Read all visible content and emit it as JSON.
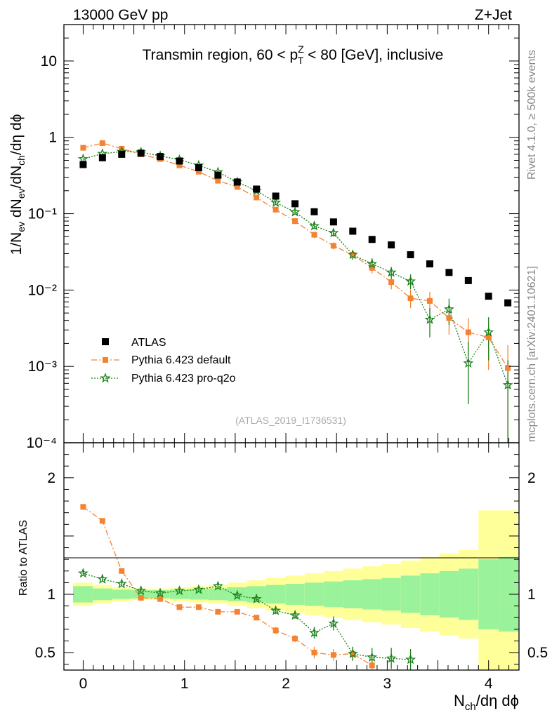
{
  "header": {
    "energy": "13000 GeV pp",
    "process": "Z+Jet",
    "rivet": "Rivet 4.1.0, ≥ 500k events",
    "mcplots": "mcplots.cern.ch [arXiv:2401.10621]"
  },
  "colors": {
    "atlas": "#000000",
    "default": "#f58231",
    "proq2o": "#1a7f1a",
    "band_inner": "#9af39a",
    "band_outer": "#ffff99"
  },
  "chart_data": [
    {
      "type": "scatter",
      "name": "main",
      "title": "Transmin region, 60 < p",
      "title_sup": "Z",
      "title_sub": "T",
      "title_end": " < 80 [GeV], inclusive",
      "analysis_id": "(ATLAS_2019_I1736531)",
      "ylabel": "1/N_ev dN_ev/dN_ch/dη dφ",
      "yscale": "log",
      "ylim": [
        0.0001,
        30
      ],
      "xlim": [
        -0.19,
        4.3
      ],
      "y_ticks": [
        {
          "v": 10,
          "label": "10"
        },
        {
          "v": 1,
          "label": "1"
        },
        {
          "v": 0.1,
          "label": "10⁻¹"
        },
        {
          "v": 0.01,
          "label": "10⁻²"
        },
        {
          "v": 0.001,
          "label": "10⁻³"
        },
        {
          "v": 0.0001,
          "label": "10⁻⁴"
        }
      ],
      "legend": {
        "position": "bottom-left",
        "entries": [
          "ATLAS",
          "Pythia 6.423 default",
          "Pythia 6.423 pro-q2o"
        ]
      },
      "series": [
        {
          "name": "ATLAS",
          "x": [
            0,
            0.19,
            0.38,
            0.57,
            0.76,
            0.95,
            1.14,
            1.33,
            1.52,
            1.71,
            1.9,
            2.09,
            2.28,
            2.47,
            2.66,
            2.85,
            3.04,
            3.23,
            3.42,
            3.61,
            3.8,
            4.0,
            4.19
          ],
          "y": [
            0.44,
            0.54,
            0.6,
            0.62,
            0.56,
            0.49,
            0.4,
            0.32,
            0.26,
            0.21,
            0.17,
            0.135,
            0.106,
            0.078,
            0.059,
            0.046,
            0.039,
            0.029,
            0.022,
            0.017,
            0.0133,
            0.0083,
            0.0068
          ]
        },
        {
          "name": "Pythia 6.423 default",
          "x": [
            0,
            0.19,
            0.38,
            0.57,
            0.76,
            0.95,
            1.14,
            1.33,
            1.52,
            1.71,
            1.9,
            2.09,
            2.28,
            2.47,
            2.66,
            2.85,
            3.04,
            3.23,
            3.42,
            3.61,
            3.8,
            4.0,
            4.19
          ],
          "y": [
            0.73,
            0.84,
            0.71,
            0.6,
            0.52,
            0.43,
            0.355,
            0.27,
            0.224,
            0.163,
            0.113,
            0.08,
            0.053,
            0.038,
            0.029,
            0.0195,
            0.0127,
            0.0078,
            0.0072,
            0.0043,
            0.0028,
            0.0024,
            0.00095
          ],
          "err_lo": [
            0.72,
            0.83,
            0.69,
            0.58,
            0.5,
            0.41,
            0.34,
            0.255,
            0.21,
            0.152,
            0.104,
            0.073,
            0.048,
            0.034,
            0.025,
            0.0165,
            0.0102,
            0.0058,
            0.0048,
            0.0026,
            0.0014,
            0.0009,
            0.0001
          ],
          "err_hi": [
            0.74,
            0.85,
            0.73,
            0.62,
            0.54,
            0.45,
            0.37,
            0.285,
            0.238,
            0.174,
            0.122,
            0.087,
            0.058,
            0.042,
            0.033,
            0.023,
            0.0155,
            0.0102,
            0.0094,
            0.0062,
            0.0043,
            0.0038,
            0.0019
          ]
        },
        {
          "name": "Pythia 6.423 pro-q2o",
          "x": [
            0,
            0.19,
            0.38,
            0.57,
            0.76,
            0.95,
            1.14,
            1.33,
            1.52,
            1.71,
            1.9,
            2.09,
            2.28,
            2.47,
            2.66,
            2.85,
            3.04,
            3.23,
            3.42,
            3.61,
            3.8,
            4.0,
            4.19
          ],
          "y": [
            0.52,
            0.61,
            0.65,
            0.64,
            0.57,
            0.51,
            0.43,
            0.35,
            0.26,
            0.2,
            0.14,
            0.105,
            0.069,
            0.056,
            0.029,
            0.022,
            0.017,
            0.013,
            0.0041,
            0.0056,
            0.0011,
            0.0028,
            0.00057
          ],
          "err_lo": [
            0.51,
            0.6,
            0.64,
            0.63,
            0.56,
            0.5,
            0.42,
            0.34,
            0.25,
            0.19,
            0.132,
            0.098,
            0.063,
            0.05,
            0.025,
            0.018,
            0.014,
            0.0103,
            0.0024,
            0.0035,
            0.00032,
            0.0012,
            0.0001
          ],
          "err_hi": [
            0.53,
            0.62,
            0.66,
            0.65,
            0.58,
            0.52,
            0.44,
            0.36,
            0.27,
            0.21,
            0.148,
            0.112,
            0.075,
            0.062,
            0.033,
            0.026,
            0.02,
            0.016,
            0.0058,
            0.0077,
            0.0021,
            0.0044,
            0.0012
          ]
        }
      ]
    },
    {
      "type": "scatter",
      "name": "ratio",
      "ylabel": "Ratio to ATLAS",
      "xlabel": "N_ch/dη dφ",
      "ylim": [
        0.35,
        2.3
      ],
      "xlim": [
        -0.19,
        4.3
      ],
      "y_ticks": [
        {
          "v": 2,
          "label": "2"
        },
        {
          "v": 1,
          "label": "1"
        },
        {
          "v": 0.5,
          "label": "0.5"
        }
      ],
      "x_ticks": [
        {
          "v": 0,
          "label": "0"
        },
        {
          "v": 1,
          "label": "1"
        },
        {
          "v": 2,
          "label": "2"
        },
        {
          "v": 3,
          "label": "3"
        },
        {
          "v": 4,
          "label": "4"
        }
      ],
      "band_edges": [
        -0.1,
        0.095,
        0.285,
        0.475,
        0.665,
        0.855,
        1.045,
        1.235,
        1.425,
        1.615,
        1.805,
        1.995,
        2.185,
        2.375,
        2.565,
        2.755,
        2.945,
        3.135,
        3.325,
        3.515,
        3.705,
        3.9,
        4.1,
        4.3
      ],
      "band_inner_lo": [
        0.93,
        0.95,
        0.96,
        0.965,
        0.965,
        0.96,
        0.955,
        0.95,
        0.94,
        0.93,
        0.92,
        0.91,
        0.9,
        0.89,
        0.88,
        0.87,
        0.86,
        0.84,
        0.82,
        0.8,
        0.78,
        0.7,
        0.68
      ],
      "band_inner_hi": [
        1.07,
        1.05,
        1.04,
        1.035,
        1.035,
        1.04,
        1.045,
        1.05,
        1.06,
        1.07,
        1.08,
        1.09,
        1.1,
        1.11,
        1.12,
        1.13,
        1.14,
        1.16,
        1.18,
        1.2,
        1.22,
        1.3,
        1.32
      ],
      "band_outer_lo": [
        0.9,
        0.92,
        0.94,
        0.95,
        0.95,
        0.94,
        0.93,
        0.92,
        0.9,
        0.88,
        0.86,
        0.84,
        0.82,
        0.8,
        0.78,
        0.76,
        0.74,
        0.71,
        0.68,
        0.65,
        0.62,
        0.3,
        0.3
      ],
      "band_outer_hi": [
        1.1,
        1.08,
        1.06,
        1.05,
        1.05,
        1.06,
        1.07,
        1.08,
        1.1,
        1.12,
        1.14,
        1.16,
        1.18,
        1.2,
        1.22,
        1.24,
        1.26,
        1.29,
        1.32,
        1.35,
        1.38,
        1.72,
        1.72
      ],
      "series": [
        {
          "name": "Pythia 6.423 default",
          "x": [
            0,
            0.19,
            0.38,
            0.57,
            0.76,
            0.95,
            1.14,
            1.33,
            1.52,
            1.71,
            1.9,
            2.09,
            2.28,
            2.47,
            2.66,
            2.85
          ],
          "y": [
            1.75,
            1.63,
            1.2,
            0.97,
            0.96,
            0.89,
            0.89,
            0.85,
            0.85,
            0.8,
            0.69,
            0.62,
            0.5,
            0.48,
            0.49,
            0.39
          ],
          "err_lo": [
            1.74,
            1.62,
            1.18,
            0.95,
            0.94,
            0.87,
            0.87,
            0.83,
            0.83,
            0.78,
            0.66,
            0.59,
            0.45,
            0.43,
            0.43,
            0.33
          ],
          "err_hi": [
            1.76,
            1.64,
            1.22,
            0.99,
            0.98,
            0.91,
            0.91,
            0.87,
            0.87,
            0.82,
            0.72,
            0.65,
            0.55,
            0.53,
            0.55,
            0.45
          ]
        },
        {
          "name": "Pythia 6.423 pro-q2o",
          "x": [
            0,
            0.19,
            0.38,
            0.57,
            0.76,
            0.95,
            1.14,
            1.33,
            1.52,
            1.71,
            1.9,
            2.09,
            2.28,
            2.47,
            2.66,
            2.85,
            3.04,
            3.23
          ],
          "y": [
            1.18,
            1.13,
            1.09,
            1.03,
            1.01,
            1.03,
            1.04,
            1.07,
            0.99,
            0.96,
            0.86,
            0.82,
            0.67,
            0.75,
            0.49,
            0.46,
            0.45,
            0.44
          ],
          "err_lo": [
            1.16,
            1.11,
            1.07,
            1.01,
            0.99,
            1.01,
            1.02,
            1.05,
            0.97,
            0.94,
            0.83,
            0.79,
            0.62,
            0.69,
            0.43,
            0.38,
            0.36,
            0.35
          ],
          "err_hi": [
            1.2,
            1.15,
            1.11,
            1.05,
            1.03,
            1.05,
            1.06,
            1.09,
            1.01,
            0.98,
            0.89,
            0.85,
            0.72,
            0.81,
            0.55,
            0.54,
            0.54,
            0.53
          ]
        }
      ]
    }
  ]
}
